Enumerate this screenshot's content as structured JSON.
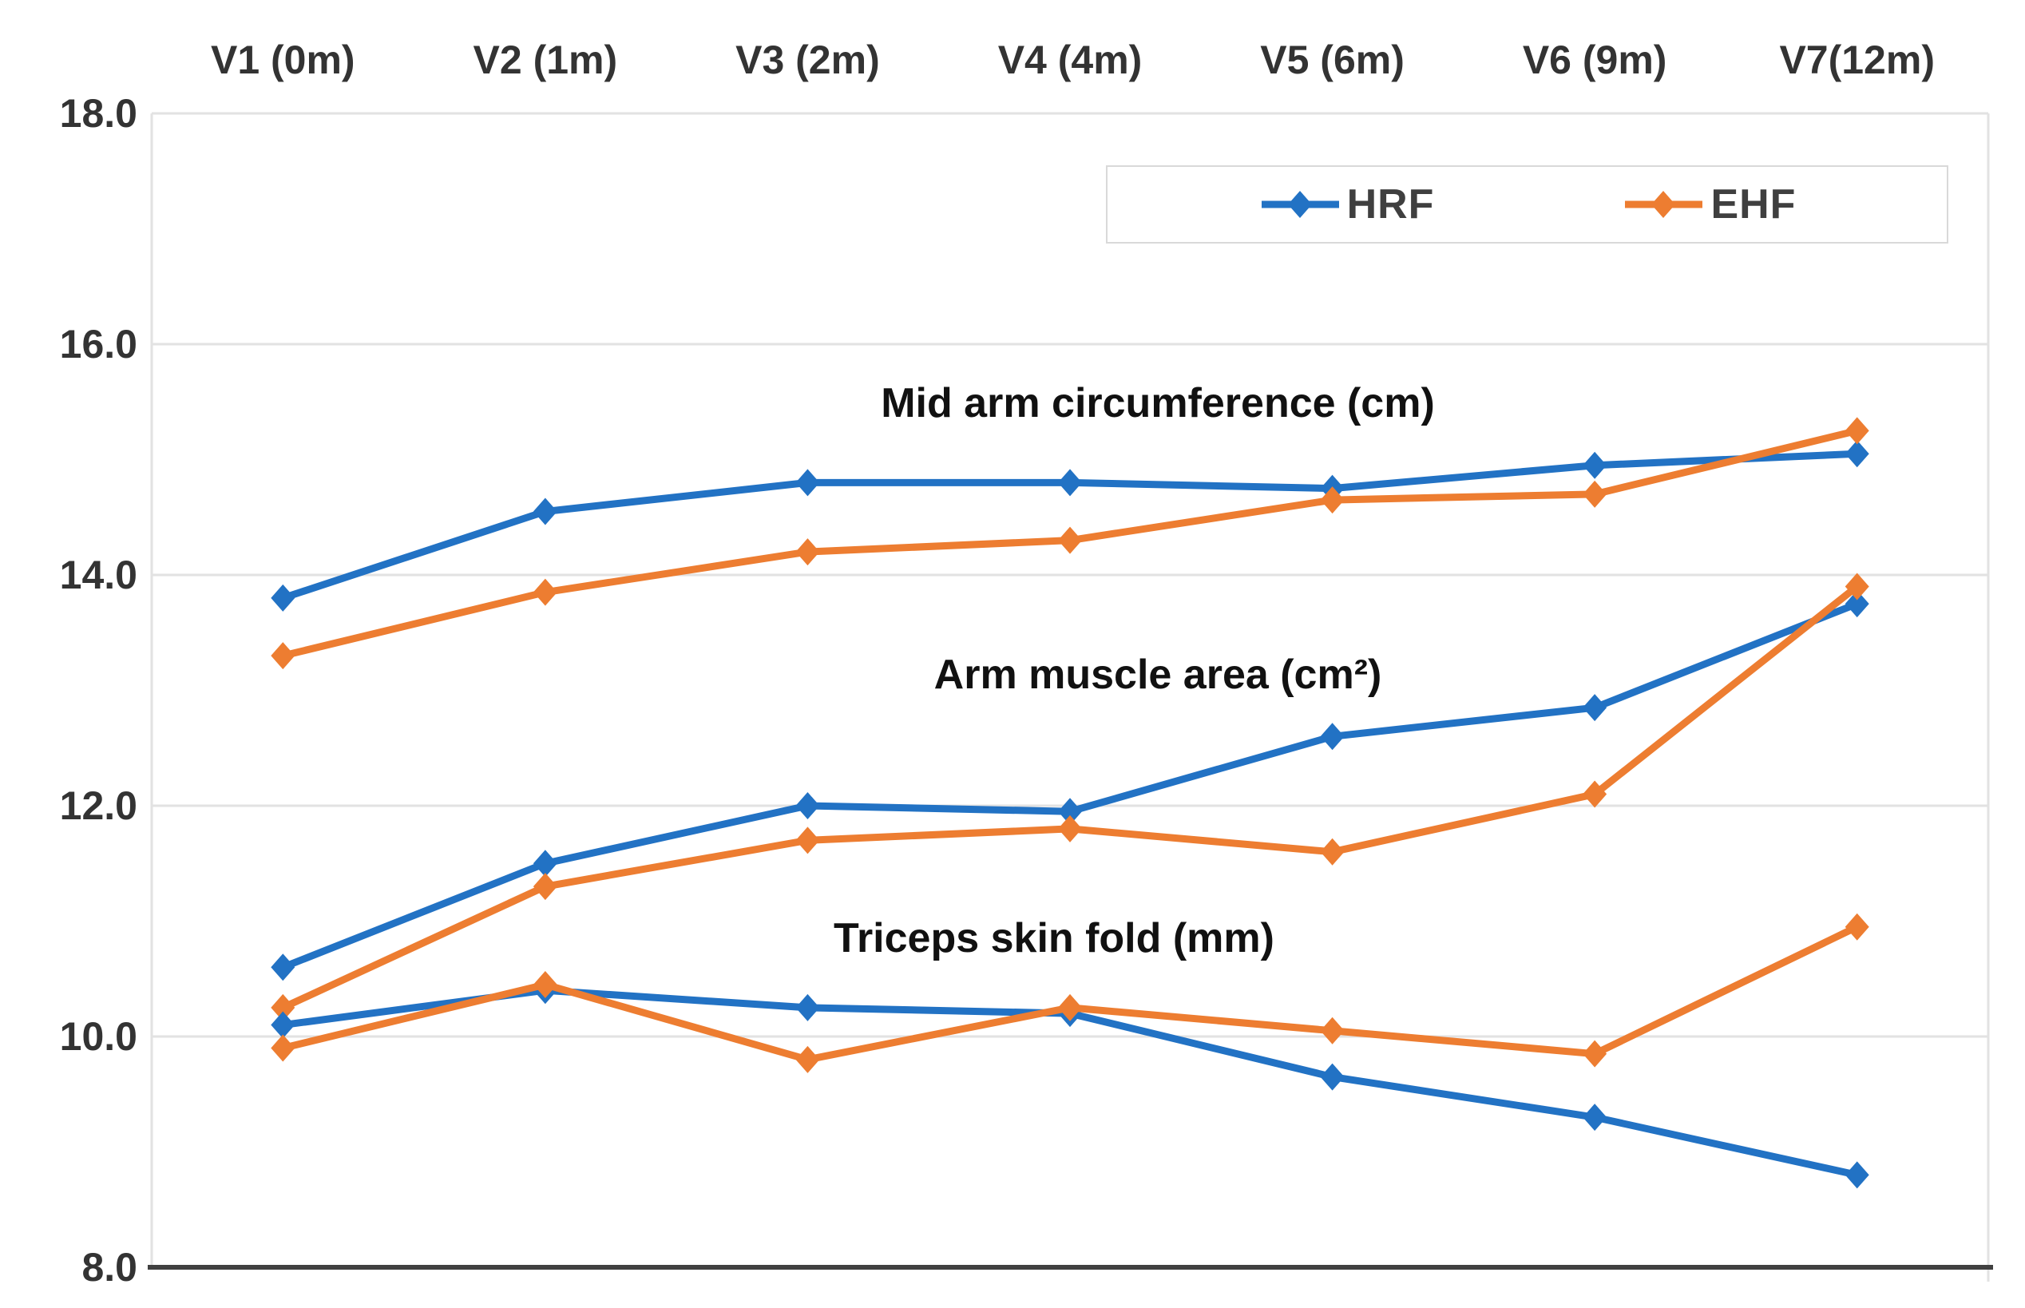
{
  "figure": {
    "background": "#ffffff",
    "axis_color": "#404040",
    "gridline_color": "#e2e2e2",
    "text_color": "#333333",
    "legend": {
      "items": [
        {
          "label": "HRF",
          "color": "#2272c4"
        },
        {
          "label": "EHF",
          "color": "#ed7d31"
        }
      ]
    }
  },
  "chart_data": {
    "type": "line",
    "marker": "diamond",
    "grid": "horizontal",
    "legend_position": "inside-top-right",
    "categories": [
      "V1 (0m)",
      "V2 (1m)",
      "V3 (2m)",
      "V4 (4m)",
      "V5 (6m)",
      "V6 (9m)",
      "V7(12m)"
    ],
    "ylim": [
      8.0,
      18.0
    ],
    "yticks": [
      18.0,
      16.0,
      14.0,
      12.0,
      10.0,
      8.0
    ],
    "ytick_labels": [
      "18.0",
      "16.0",
      "14.0",
      "12.0",
      "10.0",
      "8.0"
    ],
    "groups": [
      {
        "title": "Mid arm circumference (cm)",
        "series": [
          {
            "name": "HRF",
            "color": "#2272c4",
            "values": [
              13.8,
              14.55,
              14.8,
              14.8,
              14.75,
              14.95,
              15.05
            ]
          },
          {
            "name": "EHF",
            "color": "#ed7d31",
            "values": [
              13.3,
              13.85,
              14.2,
              14.3,
              14.65,
              14.7,
              15.25
            ]
          }
        ]
      },
      {
        "title": "Arm muscle area (cm²)",
        "series": [
          {
            "name": "HRF",
            "color": "#2272c4",
            "values": [
              10.6,
              11.5,
              12.0,
              11.95,
              12.6,
              12.85,
              13.75
            ]
          },
          {
            "name": "EHF",
            "color": "#ed7d31",
            "values": [
              10.25,
              11.3,
              11.7,
              11.8,
              11.6,
              12.1,
              13.9
            ]
          }
        ]
      },
      {
        "title": "Triceps skin fold (mm)",
        "series": [
          {
            "name": "HRF",
            "color": "#2272c4",
            "values": [
              10.1,
              10.4,
              10.25,
              10.2,
              9.65,
              9.3,
              8.8
            ]
          },
          {
            "name": "EHF",
            "color": "#ed7d31",
            "values": [
              9.9,
              10.45,
              9.8,
              10.25,
              10.05,
              9.85,
              10.95
            ]
          }
        ]
      }
    ]
  }
}
